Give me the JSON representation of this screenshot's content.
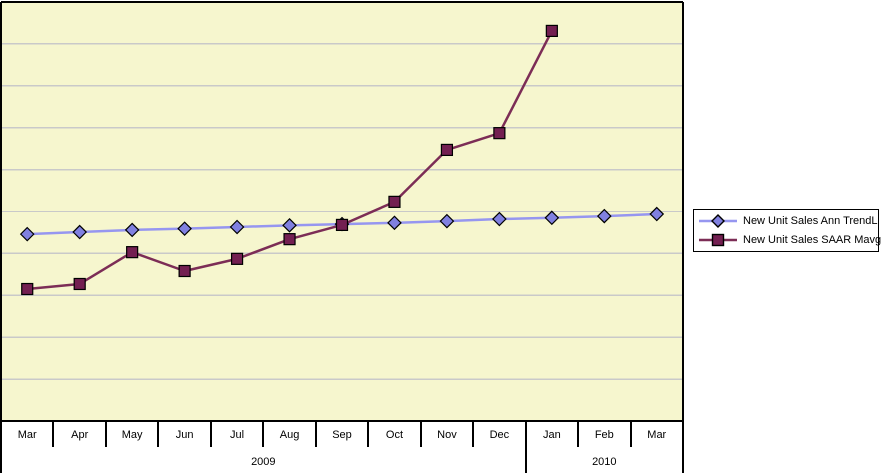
{
  "window": {
    "background": "#FFFFFF"
  },
  "colors": {
    "plot_background": "#F6F6CE",
    "plot_border": "#000000",
    "gridline": "#C9C9C9",
    "axis_text": "#000000",
    "legend_background": "#FFFFFF",
    "legend_border": "#000000"
  },
  "chart_data": {
    "type": "line",
    "title": "",
    "xlabel": "",
    "ylabel": "",
    "categories": [
      "Mar",
      "Apr",
      "May",
      "Jun",
      "Jul",
      "Aug",
      "Sep",
      "Oct",
      "Nov",
      "Dec",
      "Jan",
      "Feb",
      "Mar"
    ],
    "year_groups": [
      {
        "label": "2009",
        "span_start": 0,
        "span_end": 9
      },
      {
        "label": "2010",
        "span_start": 10,
        "span_end": 12
      }
    ],
    "series": [
      {
        "name": "New Unit Sales Ann TrendL",
        "marker": "diamond",
        "line_color": "#9696F0",
        "marker_color": "#8080E0",
        "values": [
          4.46,
          4.51,
          4.56,
          4.59,
          4.63,
          4.67,
          4.7,
          4.73,
          4.77,
          4.82,
          4.85,
          4.89,
          4.94
        ]
      },
      {
        "name": "New Unit Sales SAAR Mavg",
        "marker": "square",
        "line_color": "#7C2D56",
        "marker_color": "#731F51",
        "values": [
          3.15,
          3.27,
          4.03,
          3.58,
          3.87,
          4.34,
          4.68,
          5.23,
          6.47,
          6.87,
          9.31
        ]
      }
    ],
    "ylim": [
      0,
      10
    ],
    "gridline_count": 9,
    "grid_on": true,
    "y_axis_labels_visible": false,
    "y_value_note": "no y-axis tick labels shown; values estimated in gridline units from baseline",
    "legend_position": "right"
  }
}
